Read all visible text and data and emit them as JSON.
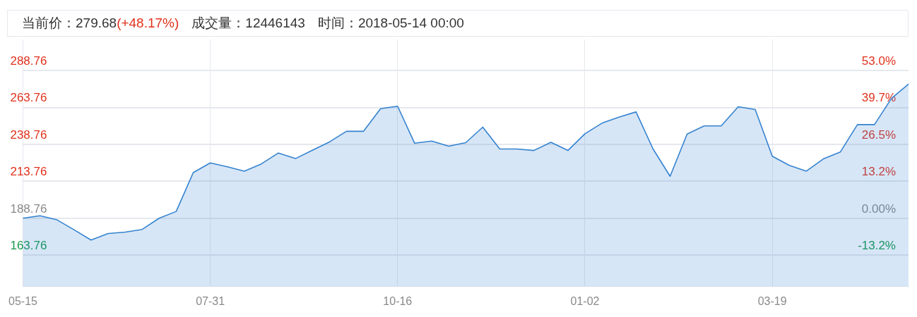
{
  "chart_data": {
    "type": "area",
    "annotations": [
      "当前价：279.68",
      "(+48.17%)",
      "成交量：12446143",
      "时间：2018-05-14 00:00"
    ],
    "categories": [
      "05-15",
      null,
      null,
      null,
      null,
      null,
      null,
      null,
      null,
      null,
      null,
      "07-31",
      null,
      null,
      null,
      null,
      null,
      null,
      null,
      null,
      null,
      null,
      "10-16",
      null,
      null,
      null,
      null,
      null,
      null,
      null,
      null,
      null,
      null,
      "01-02",
      null,
      null,
      null,
      null,
      null,
      null,
      null,
      null,
      null,
      null,
      "03-19",
      null,
      null,
      null,
      null,
      null,
      null,
      null,
      null
    ],
    "series": [
      {
        "color": "#3583d0",
        "values": [
          188.8,
          190.5,
          187.7,
          181.0,
          174.0,
          178.4,
          179.4,
          181.2,
          188.8,
          193.4,
          219.7,
          226.3,
          223.6,
          220.7,
          225.6,
          233.0,
          229.2,
          234.9,
          240.5,
          247.7,
          247.7,
          263.0,
          264.7,
          239.6,
          241.1,
          237.6,
          240.0,
          250.5,
          235.7,
          235.7,
          234.7,
          240.2,
          234.7,
          246.0,
          253.2,
          257.3,
          260.8,
          235.7,
          217.2,
          245.8,
          251.3,
          251.3,
          264.3,
          262.4,
          230.8,
          224.6,
          220.7,
          229.0,
          233.7,
          252.2,
          252.2,
          270.0,
          279.7
        ]
      }
    ],
    "ylim": [
      142.5,
      309.8
    ],
    "yticks": [
      163.76,
      188.76,
      213.76,
      238.76,
      263.76,
      288.76
    ],
    "y2lim": [
      -24.51,
      64.12
    ],
    "y2ticks": [
      {
        "value": -13.2,
        "label": "-13.2%"
      },
      {
        "value": 0,
        "label": "0.00%"
      },
      {
        "value": 13.2,
        "label": "13.2%"
      },
      {
        "value": 26.5,
        "label": "26.5%"
      },
      {
        "value": 39.7,
        "label": "39.7%"
      },
      {
        "value": 53.0,
        "label": "53.0%"
      }
    ],
    "grid": true,
    "legend": false,
    "marker": "none",
    "line_style": "solid"
  }
}
